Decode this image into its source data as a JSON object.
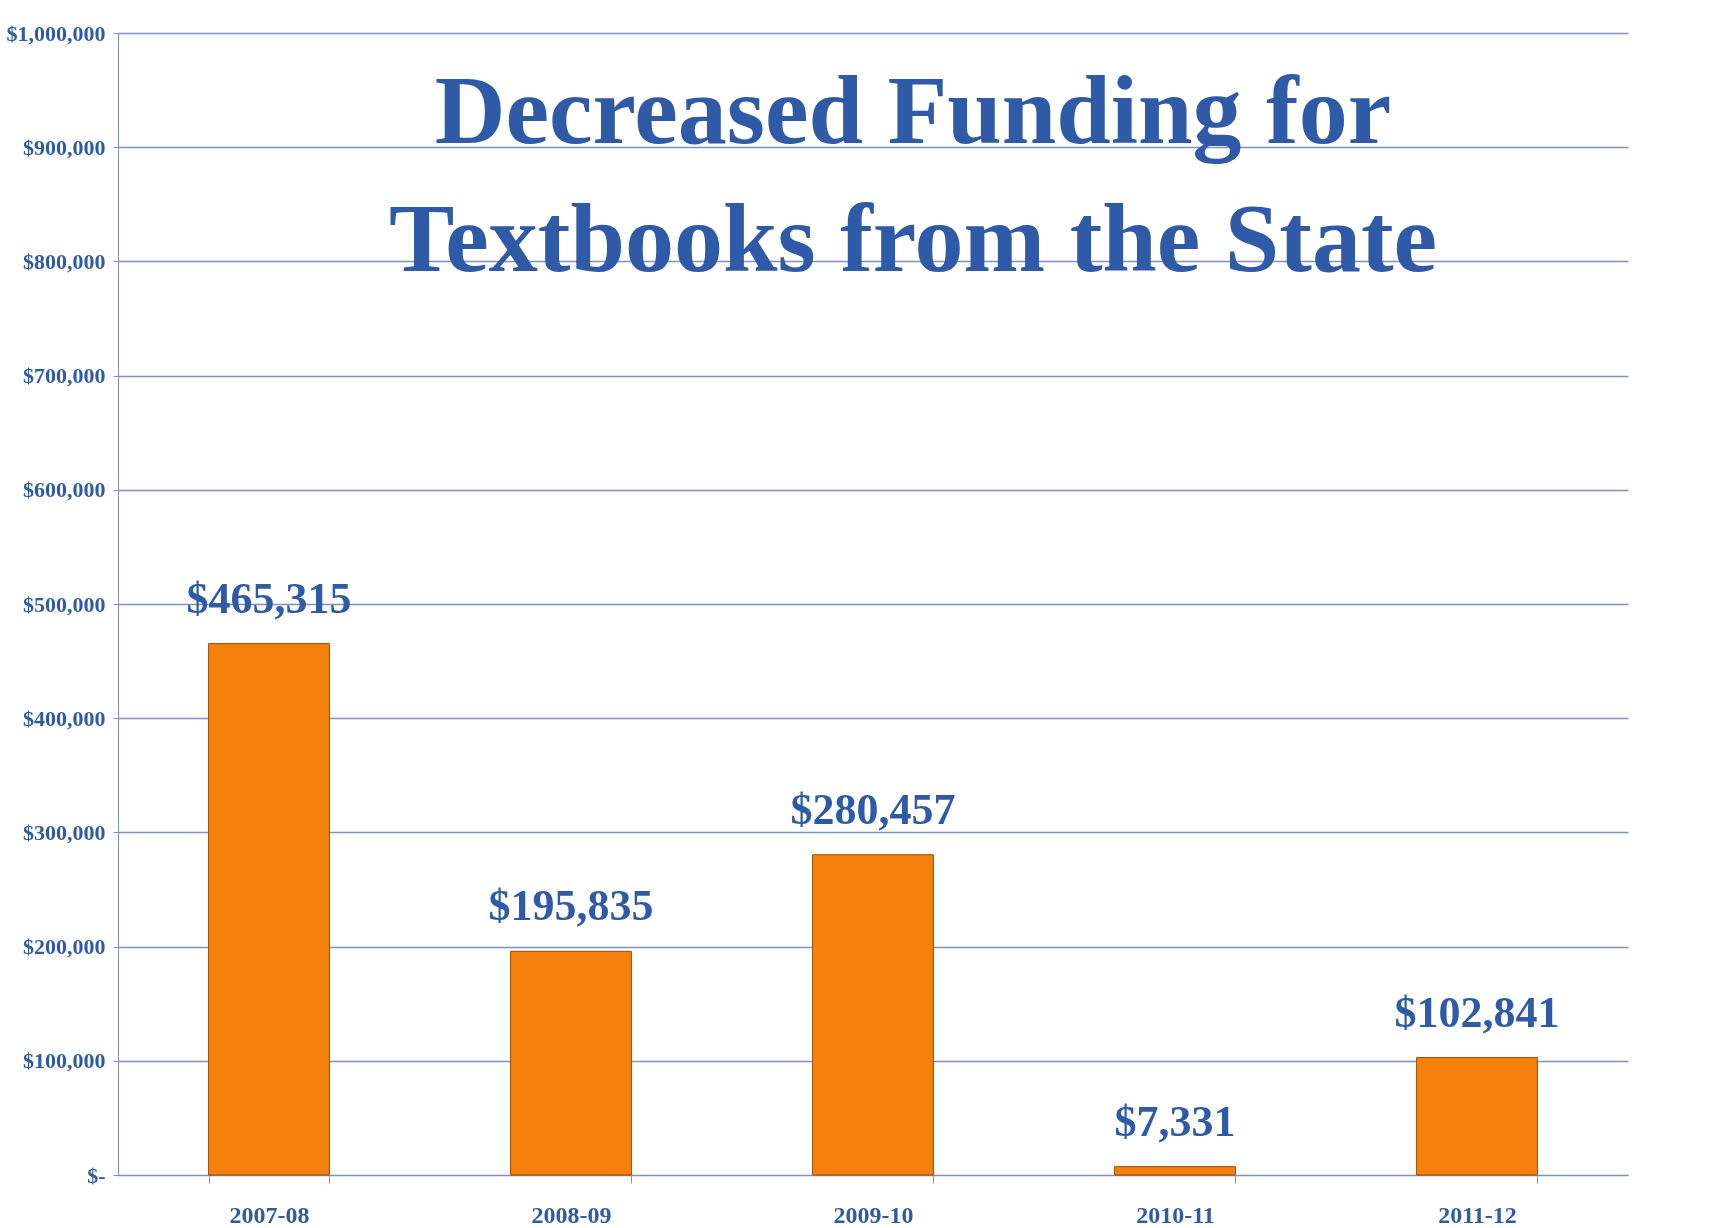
{
  "chart_data": {
    "type": "bar",
    "title": "Decreased Funding for Textbooks from the State",
    "categories": [
      "2007-08",
      "2008-09",
      "2009-10",
      "2010-11",
      "2011-12"
    ],
    "values": [
      465315,
      195835,
      280457,
      7331,
      102841
    ],
    "value_labels": [
      "$465,315",
      "$195,835",
      "$280,457",
      "$7,331",
      "$102,841"
    ],
    "color": "#f5800c",
    "ylim": [
      0,
      1000000
    ],
    "yticks": [
      {
        "value": 0,
        "label": "$-"
      },
      {
        "value": 100000,
        "label": "$100,000"
      },
      {
        "value": 200000,
        "label": "$200,000"
      },
      {
        "value": 300000,
        "label": "$300,000"
      },
      {
        "value": 400000,
        "label": "$400,000"
      },
      {
        "value": 500000,
        "label": "$500,000"
      },
      {
        "value": 600000,
        "label": "$600,000"
      },
      {
        "value": 700000,
        "label": "$700,000"
      },
      {
        "value": 800000,
        "label": "$800,000"
      },
      {
        "value": 900000,
        "label": "$900,000"
      },
      {
        "value": 1000000,
        "label": "$1,000,000"
      }
    ],
    "grid": "y"
  }
}
